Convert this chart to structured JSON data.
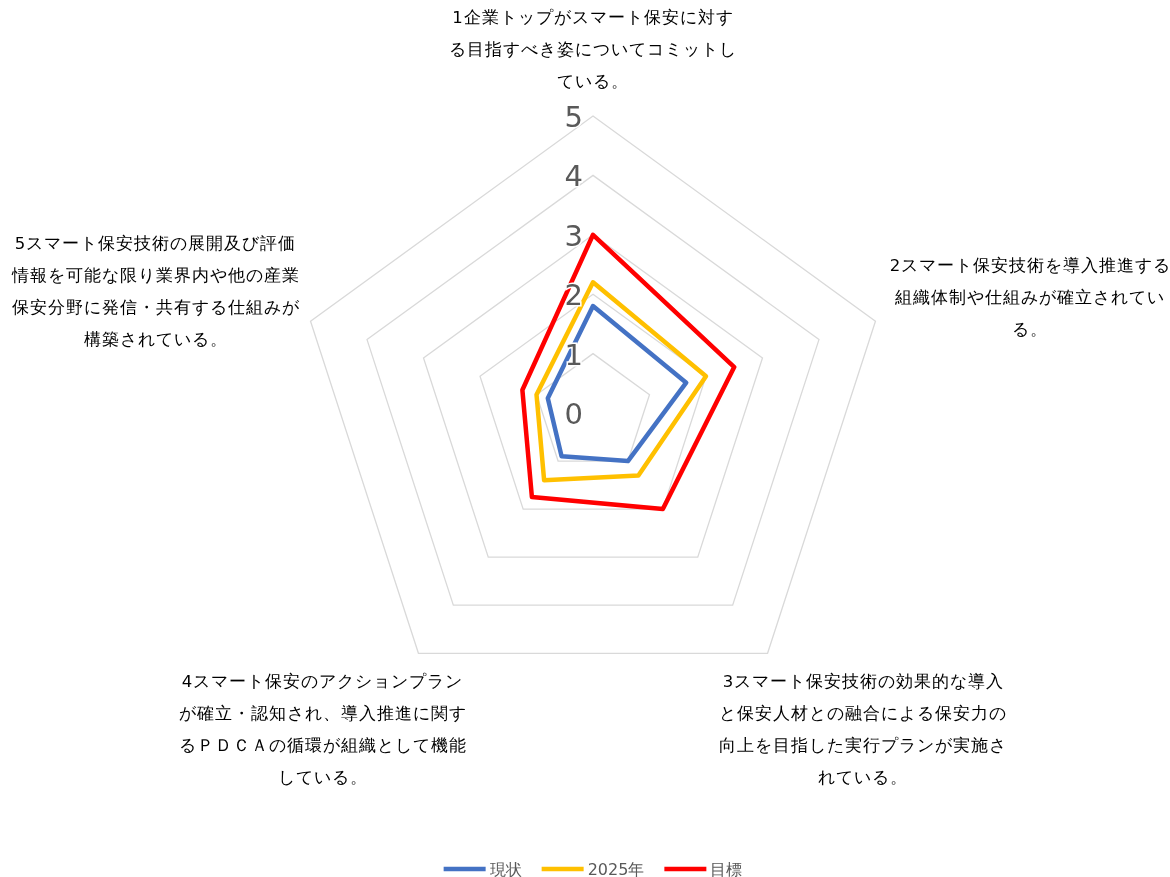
{
  "chart_data": {
    "type": "radar",
    "categories": [
      "1企業トップがスマート保安に対する目指すべき姿についてコミットしている。",
      "2スマート保安技術を導入推進する組織体制や仕組みが確立されている。",
      "3スマート保安技術の効果的な導入と保安人材との融合による保安力の向上を目指した実行プランが実施されている。",
      "4スマート保安のアクションプランが確立・認知され、導入推進に関するＰＤＣＡの循環が組織として機能している。",
      "5スマート保安技術の展開及び評価情報を可能な限り業界内や他の産業保安分野に発信・共有する仕組みが構築されている。"
    ],
    "series": [
      {
        "name": "現状",
        "color": "#4472c4",
        "values": [
          1.8,
          1.65,
          1,
          0.9,
          0.8
        ]
      },
      {
        "name": "2025年",
        "color": "#ffc000",
        "values": [
          2.2,
          2,
          1.3,
          1.4,
          1
        ]
      },
      {
        "name": "目標",
        "color": "#ff0000",
        "values": [
          3,
          2.5,
          2,
          1.75,
          1.25
        ]
      }
    ],
    "ylim": [
      0,
      5
    ],
    "yticks": [
      0,
      1,
      2,
      3,
      4,
      5
    ],
    "grid": true,
    "legend": "bottom"
  }
}
